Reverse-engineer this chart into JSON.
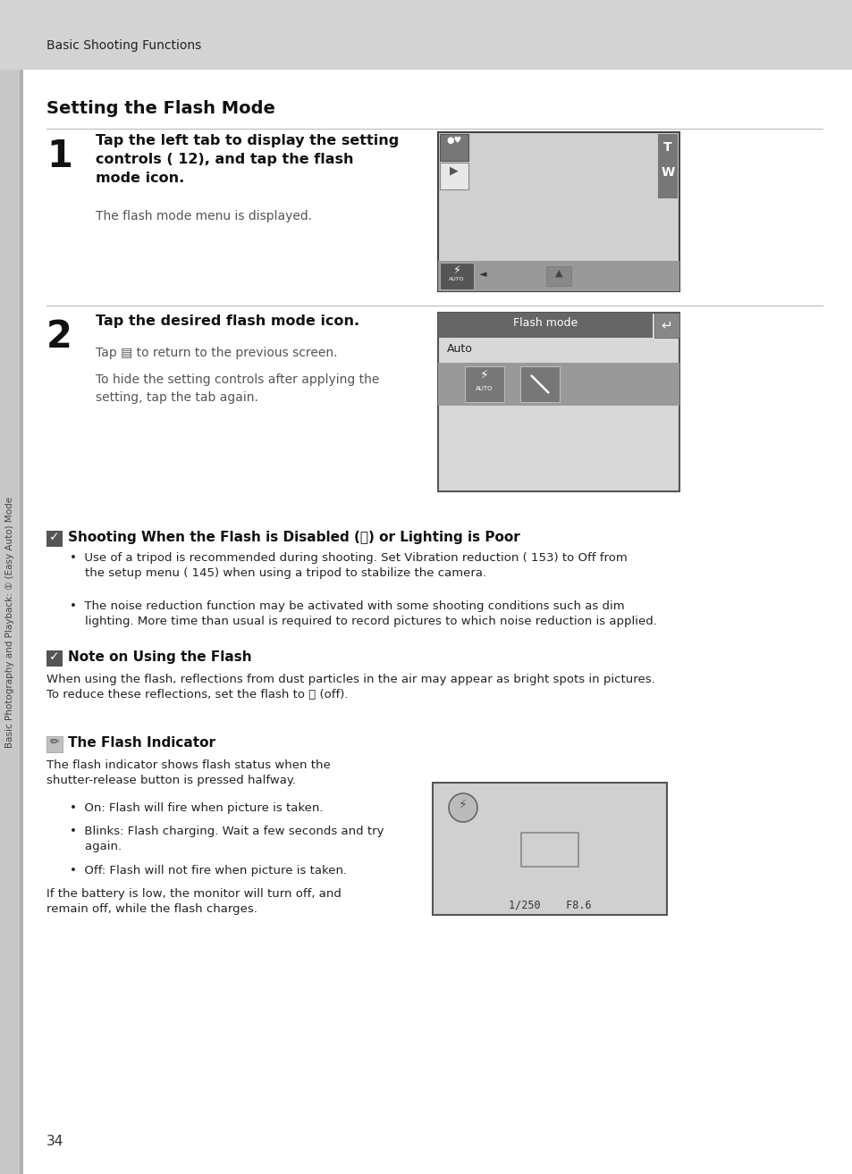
{
  "page_bg": "#ffffff",
  "header_bg": "#d3d3d3",
  "header_text": "Basic Shooting Functions",
  "title": "Setting the Flash Mode",
  "sidebar_text": "Basic Photography and Playback: ① (Easy Auto) Mode",
  "sidebar_bg": "#c8c8c8",
  "page_number": "34",
  "screen1_bg": "#d0d0d0",
  "screen2_bg": "#d0d0d0",
  "screen3_bg": "#d0d0d0",
  "dark_bar": "#666666",
  "med_gray": "#888888",
  "icon_gray": "#777777",
  "tw_gray": "#777777"
}
